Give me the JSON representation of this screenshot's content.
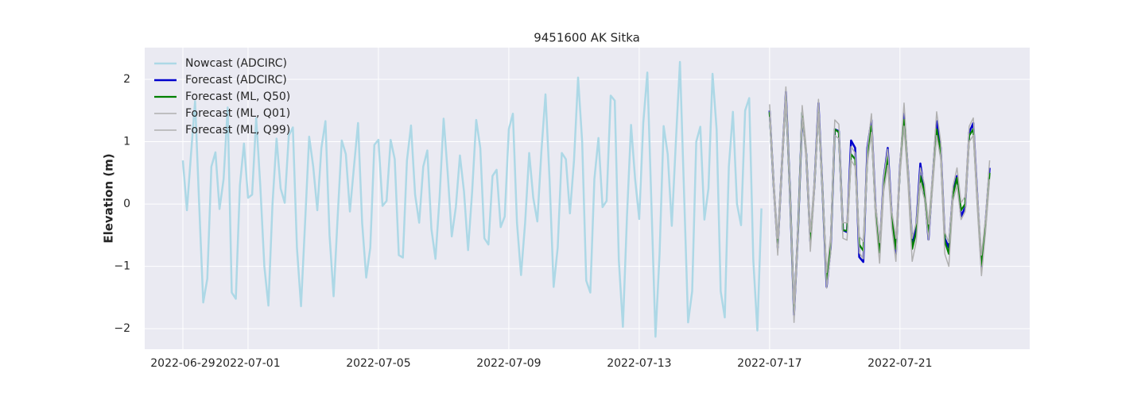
{
  "chart_data": {
    "type": "line",
    "title": "9451600 AK Sitka",
    "y_label": "Elevation (m)",
    "xlim": [
      -1.17,
      25.98
    ],
    "ylim": [
      -2.33,
      2.51
    ],
    "xticks": [
      {
        "value": 0,
        "label": "2022-06-29"
      },
      {
        "value": 2,
        "label": "2022-07-01"
      },
      {
        "value": 6,
        "label": "2022-07-05"
      },
      {
        "value": 10,
        "label": "2022-07-09"
      },
      {
        "value": 14,
        "label": "2022-07-13"
      },
      {
        "value": 18,
        "label": "2022-07-17"
      },
      {
        "value": 22,
        "label": "2022-07-21"
      }
    ],
    "yticks": [
      {
        "value": -2,
        "label": "−2"
      },
      {
        "value": -1,
        "label": "−1"
      },
      0,
      1,
      2
    ],
    "grid": true,
    "legend": "upper left",
    "series": [
      {
        "name": "Nowcast (ADCIRC)",
        "color": "#add8e6",
        "width": 2.5,
        "x": [
          0,
          0.125,
          0.25,
          0.375,
          0.5,
          0.625,
          0.75,
          0.875,
          1,
          1.125,
          1.25,
          1.375,
          1.5,
          1.625,
          1.75,
          1.875,
          2,
          2.125,
          2.25,
          2.375,
          2.5,
          2.625,
          2.75,
          2.875,
          3,
          3.125,
          3.25,
          3.375,
          3.5,
          3.625,
          3.75,
          3.875,
          4,
          4.125,
          4.25,
          4.375,
          4.5,
          4.625,
          4.75,
          4.875,
          5,
          5.125,
          5.25,
          5.375,
          5.5,
          5.625,
          5.75,
          5.875,
          6,
          6.125,
          6.25,
          6.375,
          6.5,
          6.625,
          6.75,
          6.875,
          7,
          7.125,
          7.25,
          7.375,
          7.5,
          7.625,
          7.75,
          7.875,
          8,
          8.125,
          8.25,
          8.375,
          8.5,
          8.625,
          8.75,
          8.875,
          9,
          9.125,
          9.25,
          9.375,
          9.5,
          9.625,
          9.75,
          9.875,
          10,
          10.125,
          10.25,
          10.375,
          10.5,
          10.625,
          10.75,
          10.875,
          11,
          11.125,
          11.25,
          11.375,
          11.5,
          11.625,
          11.75,
          11.875,
          12,
          12.125,
          12.25,
          12.375,
          12.5,
          12.625,
          12.75,
          12.875,
          13,
          13.125,
          13.25,
          13.375,
          13.5,
          13.625,
          13.75,
          13.875,
          14,
          14.125,
          14.25,
          14.375,
          14.5,
          14.625,
          14.75,
          14.875,
          15,
          15.125,
          15.25,
          15.375,
          15.5,
          15.625,
          15.75,
          15.875,
          16,
          16.125,
          16.25,
          16.375,
          16.5,
          16.625,
          16.75,
          16.875,
          17,
          17.125,
          17.25,
          17.375,
          17.5,
          17.625,
          17.75
        ],
        "values": [
          0.7,
          -0.1,
          0.8,
          1.65,
          0.0,
          -1.58,
          -1.2,
          0.6,
          0.83,
          -0.08,
          0.4,
          1.55,
          -1.42,
          -1.52,
          0.3,
          0.97,
          0.1,
          0.15,
          1.38,
          0.3,
          -1.0,
          -1.63,
          0,
          1.05,
          0.25,
          0.02,
          1.1,
          1.23,
          -0.7,
          -1.64,
          -0.3,
          1.08,
          0.6,
          -0.1,
          0.9,
          1.33,
          -0.5,
          -1.48,
          -0.2,
          1.02,
          0.8,
          -0.12,
          0.6,
          1.3,
          -0.3,
          -1.18,
          -0.7,
          0.95,
          1.03,
          -0.03,
          0.05,
          1.03,
          0.72,
          -0.82,
          -0.86,
          0.7,
          1.26,
          0.15,
          -0.3,
          0.6,
          0.86,
          -0.4,
          -0.88,
          0.1,
          1.37,
          0.5,
          -0.52,
          -0.05,
          0.78,
          0.2,
          -0.74,
          0.2,
          1.35,
          0.9,
          -0.55,
          -0.65,
          0.45,
          0.55,
          -0.37,
          -0.2,
          1.2,
          1.45,
          -0.3,
          -1.14,
          -0.3,
          0.82,
          0.1,
          -0.28,
          0.85,
          1.76,
          0.4,
          -1.33,
          -0.7,
          0.82,
          0.72,
          -0.15,
          0.7,
          2.03,
          1.0,
          -1.23,
          -1.42,
          0.4,
          1.06,
          -0.05,
          0.05,
          1.74,
          1.66,
          -0.9,
          -1.97,
          -0.2,
          1.27,
          0.4,
          -0.24,
          1.3,
          2.11,
          0.0,
          -2.13,
          -0.8,
          1.25,
          0.8,
          -0.35,
          1.0,
          2.28,
          0.2,
          -1.9,
          -1.4,
          1.0,
          1.24,
          -0.25,
          0.25,
          2.09,
          1.2,
          -1.4,
          -1.82,
          0.6,
          1.48,
          0.0,
          -0.34,
          1.5,
          1.7,
          -0.9,
          -2.03,
          -0.07
        ]
      },
      {
        "name": "Forecast (ADCIRC)",
        "color": "#0000cc",
        "width": 2.5,
        "x": [
          18,
          18.125,
          18.25,
          18.375,
          18.5,
          18.625,
          18.75,
          18.875,
          19,
          19.125,
          19.25,
          19.375,
          19.5,
          19.625,
          19.75,
          19.875,
          20,
          20.125,
          20.25,
          20.375,
          20.5,
          20.625,
          20.75,
          20.875,
          21,
          21.125,
          21.25,
          21.375,
          21.5,
          21.625,
          21.75,
          21.875,
          22,
          22.125,
          22.25,
          22.375,
          22.5,
          22.625,
          22.75,
          22.875,
          23,
          23.125,
          23.25,
          23.375,
          23.5,
          23.625,
          23.75,
          23.875,
          24,
          24.125,
          24.25,
          24.375,
          24.5,
          24.625,
          24.75
        ],
        "values": [
          1.5,
          0.3,
          -0.7,
          0.6,
          1.8,
          0.2,
          -1.78,
          -0.4,
          1.45,
          0.8,
          -0.6,
          0.3,
          1.62,
          0.2,
          -1.33,
          -0.7,
          1.2,
          1.17,
          -0.42,
          -0.45,
          1.02,
          0.9,
          -0.85,
          -0.93,
          0.9,
          1.35,
          -0.05,
          -0.75,
          0.4,
          0.9,
          -0.2,
          -0.8,
          0.6,
          1.45,
          0.5,
          -0.62,
          -0.35,
          0.65,
          0.2,
          -0.57,
          0.4,
          1.33,
          0.9,
          -0.55,
          -0.7,
          0.2,
          0.45,
          -0.2,
          -0.05,
          1.15,
          1.3,
          0.1,
          -1.0,
          -0.3,
          0.58
        ]
      },
      {
        "name": "Forecast (ML, Q50)",
        "color": "#008000",
        "width": 2.2,
        "x": [
          18,
          18.125,
          18.25,
          18.375,
          18.5,
          18.625,
          18.75,
          18.875,
          19,
          19.125,
          19.25,
          19.375,
          19.5,
          19.625,
          19.75,
          19.875,
          20,
          20.125,
          20.25,
          20.375,
          20.5,
          20.625,
          20.75,
          20.875,
          21,
          21.125,
          21.25,
          21.375,
          21.5,
          21.625,
          21.75,
          21.875,
          22,
          22.125,
          22.25,
          22.375,
          22.5,
          22.625,
          22.75,
          22.875,
          23,
          23.125,
          23.25,
          23.375,
          23.5,
          23.625,
          23.75,
          23.875,
          24,
          24.125,
          24.25,
          24.375,
          24.5,
          24.625,
          24.75
        ],
        "values": [
          1.48,
          0.3,
          -0.68,
          0.6,
          1.75,
          0.2,
          -1.75,
          -0.4,
          1.47,
          0.8,
          -0.6,
          0.3,
          1.55,
          0.2,
          -1.25,
          -0.65,
          1.2,
          1.15,
          -0.42,
          -0.43,
          0.8,
          0.72,
          -0.65,
          -0.75,
          0.75,
          1.25,
          -0.1,
          -0.78,
          0.3,
          0.75,
          -0.25,
          -0.72,
          0.55,
          1.35,
          0.45,
          -0.72,
          -0.45,
          0.45,
          0.2,
          -0.45,
          0.35,
          1.2,
          0.85,
          -0.6,
          -0.8,
          0.15,
          0.42,
          -0.1,
          0.0,
          1.1,
          1.2,
          0.05,
          -0.98,
          -0.35,
          0.5
        ]
      },
      {
        "name": "Forecast (ML, Q01)",
        "color": "#b0b0b0",
        "width": 1.5,
        "x": [
          18,
          18.125,
          18.25,
          18.375,
          18.5,
          18.625,
          18.75,
          18.875,
          19,
          19.125,
          19.25,
          19.375,
          19.5,
          19.625,
          19.75,
          19.875,
          20,
          20.125,
          20.25,
          20.375,
          20.5,
          20.625,
          20.75,
          20.875,
          21,
          21.125,
          21.25,
          21.375,
          21.5,
          21.625,
          21.75,
          21.875,
          22,
          22.125,
          22.25,
          22.375,
          22.5,
          22.625,
          22.75,
          22.875,
          23,
          23.125,
          23.25,
          23.375,
          23.5,
          23.625,
          23.75,
          23.875,
          24,
          24.125,
          24.25,
          24.375,
          24.5,
          24.625,
          24.75
        ],
        "values": [
          1.4,
          0.2,
          -0.82,
          0.5,
          1.65,
          0.1,
          -1.9,
          -0.5,
          1.38,
          0.7,
          -0.76,
          0.2,
          1.45,
          0.1,
          -1.35,
          -0.78,
          1.1,
          1.05,
          -0.55,
          -0.58,
          0.7,
          0.6,
          -0.78,
          -0.88,
          0.65,
          1.15,
          -0.22,
          -0.95,
          0.2,
          0.62,
          -0.38,
          -0.92,
          0.45,
          1.25,
          0.3,
          -0.92,
          -0.6,
          0.33,
          0.08,
          -0.58,
          0.25,
          1.1,
          0.72,
          -0.8,
          -1.0,
          0.05,
          0.3,
          -0.25,
          -0.12,
          1.0,
          1.1,
          -0.08,
          -1.15,
          -0.45,
          0.4
        ]
      },
      {
        "name": "Forecast (ML, Q99)",
        "color": "#b0b0b0",
        "width": 1.5,
        "x": [
          18,
          18.125,
          18.25,
          18.375,
          18.5,
          18.625,
          18.75,
          18.875,
          19,
          19.125,
          19.25,
          19.375,
          19.5,
          19.625,
          19.75,
          19.875,
          20,
          20.125,
          20.25,
          20.375,
          20.5,
          20.625,
          20.75,
          20.875,
          21,
          21.125,
          21.25,
          21.375,
          21.5,
          21.625,
          21.75,
          21.875,
          22,
          22.125,
          22.25,
          22.375,
          22.5,
          22.625,
          22.75,
          22.875,
          23,
          23.125,
          23.25,
          23.375,
          23.5,
          23.625,
          23.75,
          23.875,
          24,
          24.125,
          24.25,
          24.375,
          24.5,
          24.625,
          24.75
        ],
        "values": [
          1.6,
          0.4,
          -0.55,
          0.72,
          1.88,
          0.3,
          -1.6,
          -0.3,
          1.58,
          0.9,
          -0.45,
          0.4,
          1.68,
          0.3,
          -1.1,
          -0.5,
          1.35,
          1.28,
          -0.3,
          -0.3,
          0.92,
          0.82,
          -0.52,
          -0.6,
          0.88,
          1.45,
          0.02,
          -0.62,
          0.42,
          0.88,
          -0.12,
          -0.55,
          0.68,
          1.62,
          0.58,
          -0.55,
          -0.3,
          0.58,
          0.32,
          -0.32,
          0.48,
          1.48,
          1.0,
          -0.45,
          -0.62,
          0.28,
          0.58,
          0.02,
          0.12,
          1.25,
          1.38,
          0.18,
          -0.82,
          -0.22,
          0.7
        ]
      }
    ]
  }
}
